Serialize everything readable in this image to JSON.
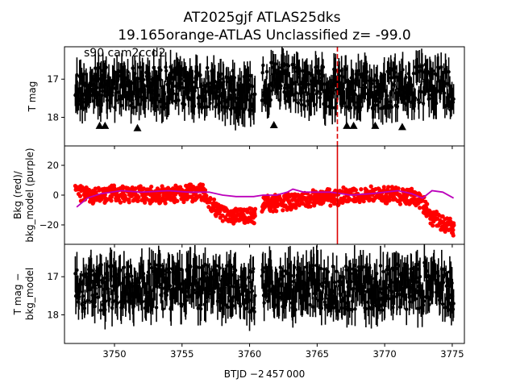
{
  "chart_data": {
    "type": "scatter",
    "title_line1": "AT2025gjf  ATLAS25dks",
    "title_line2": "19.165orange-ATLAS Unclassified z= -99.0",
    "annotation": "s90 cam2ccd2",
    "xlabel": "BTJD −2 457 000",
    "xlim": [
      3746.3,
      3775.9
    ],
    "x_ticks": [
      3750,
      3755,
      3760,
      3765,
      3770,
      3775
    ],
    "x_tick_labels": [
      "3750",
      "3755",
      "3760",
      "3765",
      "3770",
      "3775"
    ],
    "event_time": 3766.5,
    "event_color": "#dd0000",
    "gaps": [
      [
        3760.4,
        3760.9
      ]
    ],
    "x_range": [
      3747.1,
      3775.1
    ],
    "panels": [
      {
        "id": "tmag",
        "ylabel": [
          "T mag"
        ],
        "ylim": [
          16.15,
          18.75
        ],
        "inverted": true,
        "y_ticks": [
          17,
          18
        ],
        "y_tick_labels": [
          "17",
          "18"
        ],
        "color": "#000000",
        "baseline": [
          [
            3747.1,
            17.25
          ],
          [
            3753,
            17.2
          ],
          [
            3756,
            17.2
          ],
          [
            3758,
            17.3
          ],
          [
            3760.4,
            17.35
          ],
          [
            3761,
            17.1
          ],
          [
            3765,
            17.2
          ],
          [
            3768,
            17.3
          ],
          [
            3772,
            17.2
          ],
          [
            3774,
            17.1
          ],
          [
            3775.1,
            17.3
          ]
        ],
        "amplitude": 0.55,
        "upper_limits": [
          [
            3748.9,
            18.22
          ],
          [
            3749.3,
            18.22
          ],
          [
            3751.7,
            18.28
          ],
          [
            3761.8,
            18.2
          ],
          [
            3767.2,
            18.22
          ],
          [
            3767.7,
            18.22
          ],
          [
            3769.3,
            18.22
          ],
          [
            3771.3,
            18.25
          ]
        ]
      },
      {
        "id": "bkg",
        "ylabel": [
          "Bkg (red)/",
          "bkg_model (purple)"
        ],
        "ylim": [
          -33,
          33
        ],
        "inverted": false,
        "y_ticks": [
          20,
          0,
          -20
        ],
        "y_tick_labels": [
          "20",
          "0",
          "−20"
        ],
        "color": "#ff0000",
        "baseline": [
          [
            3747.1,
            3
          ],
          [
            3748,
            0
          ],
          [
            3750,
            1
          ],
          [
            3753,
            0
          ],
          [
            3755,
            1
          ],
          [
            3756.5,
            2
          ],
          [
            3757.5,
            -10
          ],
          [
            3758.5,
            -14
          ],
          [
            3760.4,
            -14
          ],
          [
            3761,
            -6
          ],
          [
            3763,
            -4
          ],
          [
            3765,
            -2
          ],
          [
            3768,
            0
          ],
          [
            3771,
            0
          ],
          [
            3772.5,
            -2
          ],
          [
            3773.5,
            -15
          ],
          [
            3775.1,
            -22
          ]
        ],
        "amplitude": 4.5,
        "model_color": "#bb00bb",
        "model": [
          [
            3747.2,
            -8
          ],
          [
            3748,
            -2
          ],
          [
            3749,
            1
          ],
          [
            3750.5,
            3
          ],
          [
            3752,
            2
          ],
          [
            3754,
            3
          ],
          [
            3755.5,
            2
          ],
          [
            3757,
            2
          ],
          [
            3758,
            0
          ],
          [
            3759,
            -1
          ],
          [
            3760.3,
            -1
          ],
          [
            3761,
            0
          ],
          [
            3762,
            0
          ],
          [
            3762.8,
            2
          ],
          [
            3763.2,
            4
          ],
          [
            3764,
            2
          ],
          [
            3766,
            2
          ],
          [
            3767.5,
            0
          ],
          [
            3769,
            1
          ],
          [
            3771,
            3
          ],
          [
            3772,
            1
          ],
          [
            3772.8,
            -2
          ],
          [
            3773.5,
            3
          ],
          [
            3774.3,
            2
          ],
          [
            3775.1,
            -2
          ]
        ]
      },
      {
        "id": "diff",
        "ylabel": [
          "T mag −",
          "bkg_model"
        ],
        "ylim": [
          16.15,
          18.75
        ],
        "inverted": true,
        "y_ticks": [
          17,
          18
        ],
        "y_tick_labels": [
          "17",
          "18"
        ],
        "color": "#000000",
        "baseline": [
          [
            3747.1,
            17.3
          ],
          [
            3753,
            17.25
          ],
          [
            3756,
            17.25
          ],
          [
            3758,
            17.3
          ],
          [
            3760.4,
            17.35
          ],
          [
            3761,
            17.25
          ],
          [
            3765,
            17.3
          ],
          [
            3768,
            17.3
          ],
          [
            3772,
            17.25
          ],
          [
            3774,
            17.2
          ],
          [
            3775.1,
            17.3
          ]
        ],
        "amplitude": 0.6
      }
    ]
  }
}
